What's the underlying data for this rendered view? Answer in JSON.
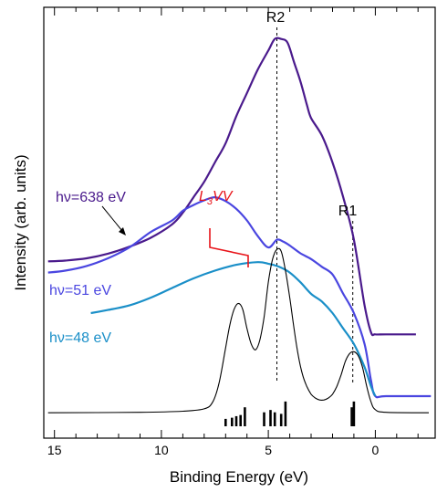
{
  "chart_data": {
    "type": "line",
    "title": "",
    "xlabel": "Binding Energy (eV)",
    "ylabel": "Intensity (arb. units)",
    "x_reversed": true,
    "xlim": [
      15.5,
      -2.8
    ],
    "ylim": [
      0,
      100
    ],
    "x_ticks": [
      15,
      10,
      5,
      0
    ],
    "grid": false,
    "series": [
      {
        "name": "hν=638 eV",
        "color": "#4a1a8c",
        "points": [
          [
            15.3,
            39.4
          ],
          [
            14.5,
            39.6
          ],
          [
            13.5,
            40.2
          ],
          [
            12.5,
            41.4
          ],
          [
            11.5,
            43.2
          ],
          [
            10.5,
            45.5
          ],
          [
            9.5,
            49.0
          ],
          [
            9.0,
            52.0
          ],
          [
            8.5,
            56.0
          ],
          [
            8.0,
            60.0
          ],
          [
            7.5,
            65.0
          ],
          [
            7.0,
            70.0
          ],
          [
            6.5,
            77.0
          ],
          [
            6.0,
            83.0
          ],
          [
            5.5,
            89.0
          ],
          [
            5.0,
            94.0
          ],
          [
            4.7,
            97.0
          ],
          [
            4.4,
            97.0
          ],
          [
            4.1,
            96.0
          ],
          [
            3.8,
            91.0
          ],
          [
            3.5,
            86.0
          ],
          [
            3.2,
            80.0
          ],
          [
            3.0,
            76.5
          ],
          [
            2.5,
            72.0
          ],
          [
            2.0,
            65.0
          ],
          [
            1.5,
            56.0
          ],
          [
            1.0,
            45.0
          ],
          [
            0.5,
            28.0
          ],
          [
            0.2,
            21.0
          ],
          [
            0.0,
            20.5
          ],
          [
            -0.5,
            20.5
          ],
          [
            -1.9,
            20.5
          ]
        ]
      },
      {
        "name": "hν=51 eV",
        "color": "#4a46e0",
        "points": [
          [
            15.3,
            36.5
          ],
          [
            14.5,
            37.0
          ],
          [
            13.5,
            38.2
          ],
          [
            12.5,
            40.2
          ],
          [
            11.5,
            43.0
          ],
          [
            10.5,
            47.0
          ],
          [
            9.5,
            50.0
          ],
          [
            9.0,
            52.5
          ],
          [
            8.5,
            54.0
          ],
          [
            8.0,
            55.2
          ],
          [
            7.5,
            56.0
          ],
          [
            7.0,
            55.0
          ],
          [
            6.5,
            53.0
          ],
          [
            6.0,
            50.0
          ],
          [
            5.5,
            46.0
          ],
          [
            5.0,
            43.0
          ],
          [
            4.6,
            45.0
          ],
          [
            4.3,
            44.5
          ],
          [
            4.0,
            43.5
          ],
          [
            3.5,
            41.5
          ],
          [
            3.0,
            40.0
          ],
          [
            2.5,
            38.0
          ],
          [
            2.0,
            36.0
          ],
          [
            1.5,
            31.0
          ],
          [
            1.0,
            26.0
          ],
          [
            0.5,
            18.0
          ],
          [
            0.2,
            8.5
          ],
          [
            0.0,
            4.5
          ],
          [
            -0.5,
            4.5
          ],
          [
            -2.6,
            4.5
          ]
        ]
      },
      {
        "name": "hν=48 eV",
        "color": "#1a8fc8",
        "points": [
          [
            13.3,
            26.0
          ],
          [
            12.5,
            26.8
          ],
          [
            11.5,
            28.0
          ],
          [
            10.5,
            30.0
          ],
          [
            9.5,
            32.5
          ],
          [
            8.5,
            35.0
          ],
          [
            7.5,
            37.0
          ],
          [
            6.5,
            38.5
          ],
          [
            5.5,
            39.2
          ],
          [
            5.0,
            38.8
          ],
          [
            4.5,
            38.0
          ],
          [
            4.0,
            36.5
          ],
          [
            3.5,
            34.0
          ],
          [
            3.0,
            31.0
          ],
          [
            2.5,
            29.0
          ],
          [
            2.0,
            26.0
          ],
          [
            1.5,
            22.0
          ],
          [
            1.0,
            18.0
          ],
          [
            0.5,
            12.0
          ],
          [
            0.2,
            7.0
          ],
          [
            0.0,
            4.5
          ]
        ]
      },
      {
        "name": "",
        "color": "#000000",
        "points": [
          [
            15.3,
            0.2
          ],
          [
            11,
            0.3
          ],
          [
            9,
            0.6
          ],
          [
            8,
            1.2
          ],
          [
            7.6,
            3
          ],
          [
            7.3,
            8
          ],
          [
            7.0,
            17
          ],
          [
            6.8,
            23
          ],
          [
            6.6,
            27
          ],
          [
            6.4,
            28.5
          ],
          [
            6.2,
            27
          ],
          [
            6.0,
            22
          ],
          [
            5.8,
            18
          ],
          [
            5.6,
            16.5
          ],
          [
            5.4,
            19
          ],
          [
            5.2,
            25
          ],
          [
            5.0,
            34
          ],
          [
            4.8,
            40
          ],
          [
            4.6,
            42.5
          ],
          [
            4.4,
            42
          ],
          [
            4.2,
            37
          ],
          [
            4.0,
            30
          ],
          [
            3.8,
            22
          ],
          [
            3.6,
            15
          ],
          [
            3.4,
            10
          ],
          [
            3.2,
            7
          ],
          [
            3.0,
            5
          ],
          [
            2.8,
            4
          ],
          [
            2.6,
            3.5
          ],
          [
            2.4,
            3.5
          ],
          [
            2.2,
            4
          ],
          [
            2.0,
            5
          ],
          [
            1.8,
            7
          ],
          [
            1.6,
            10
          ],
          [
            1.4,
            13.5
          ],
          [
            1.2,
            15.5
          ],
          [
            1.0,
            16
          ],
          [
            0.8,
            15
          ],
          [
            0.6,
            12
          ],
          [
            0.4,
            7
          ],
          [
            0.2,
            3
          ],
          [
            0.0,
            1
          ],
          [
            -0.5,
            0.3
          ],
          [
            -2.5,
            0.2
          ]
        ]
      }
    ],
    "stick_lines": [
      [
        7.0,
        0.5
      ],
      [
        6.7,
        0.8
      ],
      [
        6.5,
        1.2
      ],
      [
        6.3,
        1.5
      ],
      [
        6.1,
        3.5
      ],
      [
        5.2,
        2.2
      ],
      [
        4.9,
        2.8
      ],
      [
        4.7,
        2.2
      ],
      [
        4.4,
        1.8
      ],
      [
        4.2,
        5.0
      ],
      [
        1.1,
        3.5
      ],
      [
        1.0,
        5.0
      ]
    ],
    "reference_lines": [
      {
        "label": "R2",
        "x": 4.6
      },
      {
        "label": "R1",
        "x": 1.05
      }
    ],
    "annotations": {
      "label_638": "hν=638 eV",
      "label_51": "hν=51 eV",
      "label_48": "hν=48 eV",
      "l3vv_main": "L",
      "l3vv_sub": "3",
      "l3vv_tail": "VV",
      "r1": "R1",
      "r2": "R2"
    }
  }
}
